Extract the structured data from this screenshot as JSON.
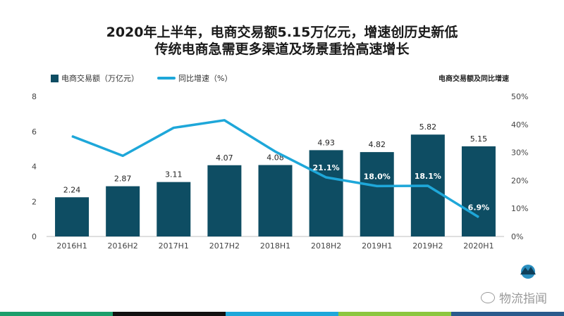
{
  "header": {
    "title_line1": "2020年上半年，电商交易额5.15万亿元，增速创历史新低",
    "title_line2": "传统电商急需更多渠道及场景重拾高速增长",
    "subtitle": "电商交易额及同比增速"
  },
  "legend": {
    "bar_label": "电商交易额（万亿元）",
    "line_label": "同比增速（%）"
  },
  "watermark": {
    "text": "物流指闻",
    "icon": "wechat-icon"
  },
  "colors": {
    "bar": "#0e4d63",
    "line": "#1ea7d9"
  },
  "chart_data": {
    "type": "bar",
    "categories": [
      "2016H1",
      "2016H2",
      "2017H1",
      "2017H2",
      "2018H1",
      "2018H2",
      "2019H1",
      "2019H2",
      "2020H1"
    ],
    "series": [
      {
        "name": "电商交易额（万亿元）",
        "type": "bar",
        "axis": "left",
        "values": [
          2.24,
          2.87,
          3.11,
          4.07,
          4.08,
          4.93,
          4.82,
          5.82,
          5.15
        ],
        "labels": [
          "2.24",
          "2.87",
          "3.11",
          "4.07",
          "4.08",
          "4.93",
          "4.82",
          "5.82",
          "5.15"
        ]
      },
      {
        "name": "同比增速（%）",
        "type": "line",
        "axis": "right",
        "values": [
          35.8,
          28.8,
          38.8,
          41.5,
          30.3,
          21.1,
          18.0,
          18.1,
          6.9
        ],
        "labels": [
          "",
          "",
          "",
          "",
          "",
          "21.1%",
          "18.0%",
          "18.1%",
          "6.9%"
        ]
      }
    ],
    "y_left": {
      "min": 0,
      "max": 8,
      "ticks": [
        "0",
        "2",
        "4",
        "6",
        "8"
      ]
    },
    "y_right": {
      "min": 0,
      "max": 50,
      "ticks": [
        "0%",
        "10%",
        "20%",
        "30%",
        "40%",
        "50%"
      ]
    },
    "grid": false,
    "legend_position": "top-left"
  }
}
